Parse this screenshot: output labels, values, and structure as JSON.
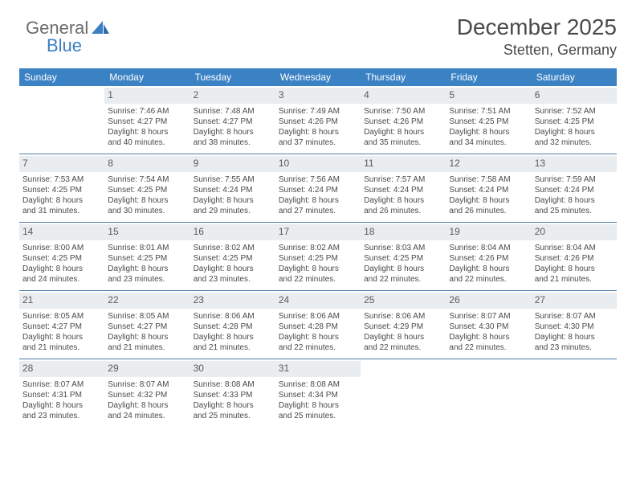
{
  "brand": {
    "part1": "General",
    "part2": "Blue"
  },
  "title": "December 2025",
  "location": "Stetten, Germany",
  "colors": {
    "header_bg": "#3b82c4",
    "header_text": "#ffffff",
    "num_bg": "#e9edf0",
    "text": "#4a4a4a",
    "rule": "#4a7ba8",
    "background": "#ffffff"
  },
  "day_names": [
    "Sunday",
    "Monday",
    "Tuesday",
    "Wednesday",
    "Thursday",
    "Friday",
    "Saturday"
  ],
  "weeks": [
    [
      {
        "n": "",
        "sr": "",
        "ss": "",
        "dl1": "",
        "dl2": ""
      },
      {
        "n": "1",
        "sr": "Sunrise: 7:46 AM",
        "ss": "Sunset: 4:27 PM",
        "dl1": "Daylight: 8 hours",
        "dl2": "and 40 minutes."
      },
      {
        "n": "2",
        "sr": "Sunrise: 7:48 AM",
        "ss": "Sunset: 4:27 PM",
        "dl1": "Daylight: 8 hours",
        "dl2": "and 38 minutes."
      },
      {
        "n": "3",
        "sr": "Sunrise: 7:49 AM",
        "ss": "Sunset: 4:26 PM",
        "dl1": "Daylight: 8 hours",
        "dl2": "and 37 minutes."
      },
      {
        "n": "4",
        "sr": "Sunrise: 7:50 AM",
        "ss": "Sunset: 4:26 PM",
        "dl1": "Daylight: 8 hours",
        "dl2": "and 35 minutes."
      },
      {
        "n": "5",
        "sr": "Sunrise: 7:51 AM",
        "ss": "Sunset: 4:25 PM",
        "dl1": "Daylight: 8 hours",
        "dl2": "and 34 minutes."
      },
      {
        "n": "6",
        "sr": "Sunrise: 7:52 AM",
        "ss": "Sunset: 4:25 PM",
        "dl1": "Daylight: 8 hours",
        "dl2": "and 32 minutes."
      }
    ],
    [
      {
        "n": "7",
        "sr": "Sunrise: 7:53 AM",
        "ss": "Sunset: 4:25 PM",
        "dl1": "Daylight: 8 hours",
        "dl2": "and 31 minutes."
      },
      {
        "n": "8",
        "sr": "Sunrise: 7:54 AM",
        "ss": "Sunset: 4:25 PM",
        "dl1": "Daylight: 8 hours",
        "dl2": "and 30 minutes."
      },
      {
        "n": "9",
        "sr": "Sunrise: 7:55 AM",
        "ss": "Sunset: 4:24 PM",
        "dl1": "Daylight: 8 hours",
        "dl2": "and 29 minutes."
      },
      {
        "n": "10",
        "sr": "Sunrise: 7:56 AM",
        "ss": "Sunset: 4:24 PM",
        "dl1": "Daylight: 8 hours",
        "dl2": "and 27 minutes."
      },
      {
        "n": "11",
        "sr": "Sunrise: 7:57 AM",
        "ss": "Sunset: 4:24 PM",
        "dl1": "Daylight: 8 hours",
        "dl2": "and 26 minutes."
      },
      {
        "n": "12",
        "sr": "Sunrise: 7:58 AM",
        "ss": "Sunset: 4:24 PM",
        "dl1": "Daylight: 8 hours",
        "dl2": "and 26 minutes."
      },
      {
        "n": "13",
        "sr": "Sunrise: 7:59 AM",
        "ss": "Sunset: 4:24 PM",
        "dl1": "Daylight: 8 hours",
        "dl2": "and 25 minutes."
      }
    ],
    [
      {
        "n": "14",
        "sr": "Sunrise: 8:00 AM",
        "ss": "Sunset: 4:25 PM",
        "dl1": "Daylight: 8 hours",
        "dl2": "and 24 minutes."
      },
      {
        "n": "15",
        "sr": "Sunrise: 8:01 AM",
        "ss": "Sunset: 4:25 PM",
        "dl1": "Daylight: 8 hours",
        "dl2": "and 23 minutes."
      },
      {
        "n": "16",
        "sr": "Sunrise: 8:02 AM",
        "ss": "Sunset: 4:25 PM",
        "dl1": "Daylight: 8 hours",
        "dl2": "and 23 minutes."
      },
      {
        "n": "17",
        "sr": "Sunrise: 8:02 AM",
        "ss": "Sunset: 4:25 PM",
        "dl1": "Daylight: 8 hours",
        "dl2": "and 22 minutes."
      },
      {
        "n": "18",
        "sr": "Sunrise: 8:03 AM",
        "ss": "Sunset: 4:25 PM",
        "dl1": "Daylight: 8 hours",
        "dl2": "and 22 minutes."
      },
      {
        "n": "19",
        "sr": "Sunrise: 8:04 AM",
        "ss": "Sunset: 4:26 PM",
        "dl1": "Daylight: 8 hours",
        "dl2": "and 22 minutes."
      },
      {
        "n": "20",
        "sr": "Sunrise: 8:04 AM",
        "ss": "Sunset: 4:26 PM",
        "dl1": "Daylight: 8 hours",
        "dl2": "and 21 minutes."
      }
    ],
    [
      {
        "n": "21",
        "sr": "Sunrise: 8:05 AM",
        "ss": "Sunset: 4:27 PM",
        "dl1": "Daylight: 8 hours",
        "dl2": "and 21 minutes."
      },
      {
        "n": "22",
        "sr": "Sunrise: 8:05 AM",
        "ss": "Sunset: 4:27 PM",
        "dl1": "Daylight: 8 hours",
        "dl2": "and 21 minutes."
      },
      {
        "n": "23",
        "sr": "Sunrise: 8:06 AM",
        "ss": "Sunset: 4:28 PM",
        "dl1": "Daylight: 8 hours",
        "dl2": "and 21 minutes."
      },
      {
        "n": "24",
        "sr": "Sunrise: 8:06 AM",
        "ss": "Sunset: 4:28 PM",
        "dl1": "Daylight: 8 hours",
        "dl2": "and 22 minutes."
      },
      {
        "n": "25",
        "sr": "Sunrise: 8:06 AM",
        "ss": "Sunset: 4:29 PM",
        "dl1": "Daylight: 8 hours",
        "dl2": "and 22 minutes."
      },
      {
        "n": "26",
        "sr": "Sunrise: 8:07 AM",
        "ss": "Sunset: 4:30 PM",
        "dl1": "Daylight: 8 hours",
        "dl2": "and 22 minutes."
      },
      {
        "n": "27",
        "sr": "Sunrise: 8:07 AM",
        "ss": "Sunset: 4:30 PM",
        "dl1": "Daylight: 8 hours",
        "dl2": "and 23 minutes."
      }
    ],
    [
      {
        "n": "28",
        "sr": "Sunrise: 8:07 AM",
        "ss": "Sunset: 4:31 PM",
        "dl1": "Daylight: 8 hours",
        "dl2": "and 23 minutes."
      },
      {
        "n": "29",
        "sr": "Sunrise: 8:07 AM",
        "ss": "Sunset: 4:32 PM",
        "dl1": "Daylight: 8 hours",
        "dl2": "and 24 minutes."
      },
      {
        "n": "30",
        "sr": "Sunrise: 8:08 AM",
        "ss": "Sunset: 4:33 PM",
        "dl1": "Daylight: 8 hours",
        "dl2": "and 25 minutes."
      },
      {
        "n": "31",
        "sr": "Sunrise: 8:08 AM",
        "ss": "Sunset: 4:34 PM",
        "dl1": "Daylight: 8 hours",
        "dl2": "and 25 minutes."
      },
      {
        "n": "",
        "sr": "",
        "ss": "",
        "dl1": "",
        "dl2": ""
      },
      {
        "n": "",
        "sr": "",
        "ss": "",
        "dl1": "",
        "dl2": ""
      },
      {
        "n": "",
        "sr": "",
        "ss": "",
        "dl1": "",
        "dl2": ""
      }
    ]
  ]
}
